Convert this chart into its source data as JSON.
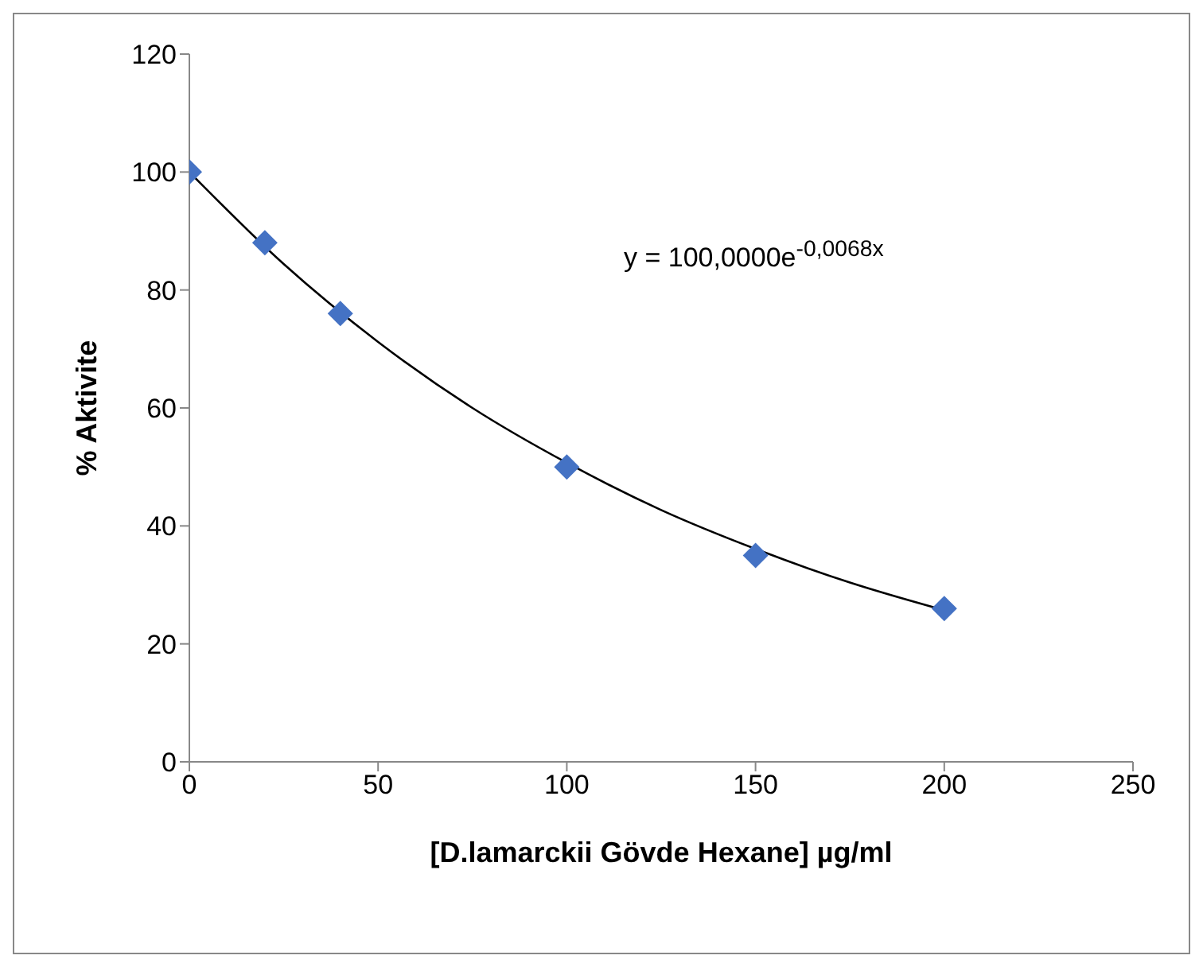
{
  "chart_data": {
    "type": "scatter",
    "xlabel": "[D.lamarckii Gövde Hexane] µg/ml",
    "ylabel": "% Aktivite",
    "xlim": [
      0,
      250
    ],
    "xticks": [
      0,
      50,
      100,
      150,
      200,
      250
    ],
    "ylim": [
      0,
      120
    ],
    "yticks": [
      0,
      20,
      40,
      60,
      80,
      100,
      120
    ],
    "grid": false,
    "legend": false,
    "series": [
      {
        "color": "#4472c4",
        "marker": "diamond",
        "x": [
          0,
          20,
          40,
          100,
          150,
          200
        ],
        "values": [
          100,
          88,
          76,
          50,
          35,
          26
        ]
      },
      {
        "type": "line",
        "color": "#000000",
        "marker": "none",
        "line_style": "solid",
        "x": [
          0,
          25,
          50,
          75,
          100,
          125,
          150,
          175,
          200
        ],
        "values": [
          100,
          84.4,
          71.2,
          60,
          50.7,
          42.7,
          36.1,
          30.4,
          25.7
        ]
      }
    ],
    "annotations": [
      "y = 100,0000e$^{-0,0068x}$"
    ]
  }
}
